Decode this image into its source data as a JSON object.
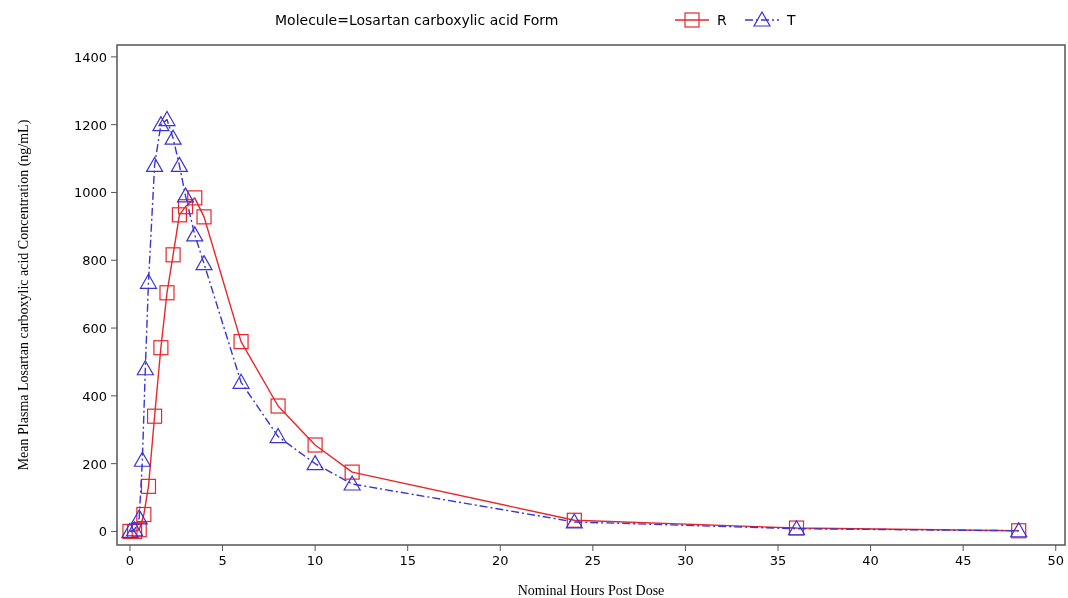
{
  "chart_data": {
    "type": "line",
    "legend_title": "Molecule=Losartan carboxylic acid Form",
    "xlabel": "Nominal Hours Post Dose",
    "ylabel": "Mean Plasma Losartan carboxylic acid Concentration (ng/mL)",
    "xlim": [
      -0.7,
      50.5
    ],
    "xticks": [
      0,
      5,
      10,
      15,
      20,
      25,
      30,
      35,
      40,
      45,
      50
    ],
    "ylim": [
      -40,
      1435
    ],
    "yticks": [
      0,
      200,
      400,
      600,
      800,
      1000,
      1200,
      1400
    ],
    "grid": false,
    "legend": "top",
    "series": [
      {
        "name": "R",
        "color": "#e8262b",
        "marker": "square",
        "line_style": "solid",
        "x": [
          0,
          0.25,
          0.5,
          0.75,
          1,
          1.33,
          1.67,
          2,
          2.33,
          2.67,
          3,
          3.5,
          4,
          6,
          8,
          10,
          12,
          24,
          36,
          48
        ],
        "values": [
          0,
          0,
          5,
          50,
          133,
          340,
          542,
          704,
          816,
          934,
          958,
          984,
          928,
          560,
          370,
          255,
          175,
          33,
          10,
          2
        ]
      },
      {
        "name": "T",
        "color": "#3a33d6",
        "marker": "triangle",
        "line_style": "dashed",
        "x": [
          0,
          0.25,
          0.5,
          0.67,
          0.83,
          1,
          1.33,
          1.67,
          2,
          2.33,
          2.67,
          3,
          3.5,
          4,
          6,
          8,
          10,
          12,
          24,
          36,
          48
        ],
        "values": [
          0,
          5,
          40,
          210,
          480,
          735,
          1080,
          1200,
          1215,
          1160,
          1080,
          990,
          875,
          790,
          440,
          280,
          200,
          140,
          28,
          8,
          2
        ]
      }
    ]
  }
}
